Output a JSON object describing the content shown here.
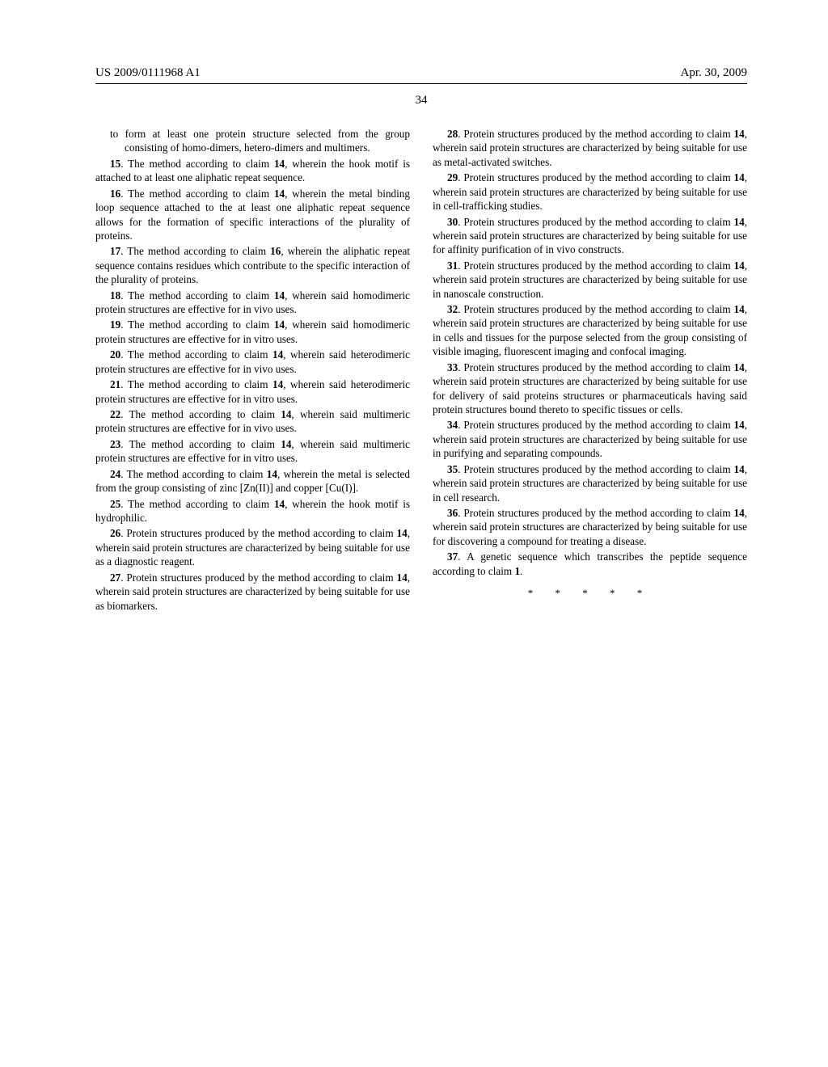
{
  "header": {
    "left": "US 2009/0111968 A1",
    "right": "Apr. 30, 2009"
  },
  "page_number": "34",
  "claims_col1": [
    {
      "style": "hang",
      "text": "to form at least one protein structure selected from the group consisting of homo-dimers, hetero-dimers and multimers."
    },
    {
      "style": "claim",
      "bold": "15",
      "text": ". The method according to claim ",
      "bold2": "14",
      "tail": ", wherein the hook motif is attached to at least one aliphatic repeat sequence."
    },
    {
      "style": "claim",
      "bold": "16",
      "text": ". The method according to claim ",
      "bold2": "14",
      "tail": ", wherein the metal binding loop sequence attached to the at least one aliphatic repeat sequence allows for the formation of specific interactions of the plurality of proteins."
    },
    {
      "style": "claim",
      "bold": "17",
      "text": ". The method according to claim ",
      "bold2": "16",
      "tail": ", wherein the aliphatic repeat sequence contains residues which contribute to the specific interaction of the plurality of proteins."
    },
    {
      "style": "claim",
      "bold": "18",
      "text": ". The method according to claim ",
      "bold2": "14",
      "tail": ", wherein said homodimeric protein structures are effective for in vivo uses."
    },
    {
      "style": "claim",
      "bold": "19",
      "text": ". The method according to claim ",
      "bold2": "14",
      "tail": ", wherein said homodimeric protein structures are effective for in vitro uses."
    },
    {
      "style": "claim",
      "bold": "20",
      "text": ". The method according to claim ",
      "bold2": "14",
      "tail": ", wherein said heterodimeric protein structures are effective for in vivo uses."
    },
    {
      "style": "claim",
      "bold": "21",
      "text": ". The method according to claim ",
      "bold2": "14",
      "tail": ", wherein said heterodimeric protein structures are effective for in vitro uses."
    },
    {
      "style": "claim",
      "bold": "22",
      "text": ". The method according to claim ",
      "bold2": "14",
      "tail": ", wherein said multimeric protein structures are effective for in vivo uses."
    },
    {
      "style": "claim",
      "bold": "23",
      "text": ". The method according to claim ",
      "bold2": "14",
      "tail": ", wherein said multimeric protein structures are effective for in vitro uses."
    },
    {
      "style": "claim",
      "bold": "24",
      "text": ". The method according to claim ",
      "bold2": "14",
      "tail": ", wherein the metal is selected from the group consisting of zinc [Zn(II)] and copper [Cu(I)]."
    },
    {
      "style": "claim",
      "bold": "25",
      "text": ". The method according to claim ",
      "bold2": "14",
      "tail": ", wherein the hook motif is hydrophilic."
    },
    {
      "style": "claim",
      "bold": "26",
      "text": ". Protein structures produced by the method according to claim ",
      "bold2": "14",
      "tail": ", wherein said protein structures are characterized by being suitable for use as a diagnostic reagent."
    },
    {
      "style": "claim",
      "bold": "27",
      "text": ". Protein structures produced by the method according to claim ",
      "bold2": "14",
      "tail": ", wherein said protein structures are characterized by being suitable for use as biomarkers."
    }
  ],
  "claims_col2": [
    {
      "style": "claim",
      "bold": "28",
      "text": ". Protein structures produced by the method according to claim ",
      "bold2": "14",
      "tail": ", wherein said protein structures are characterized by being suitable for use as metal-activated switches."
    },
    {
      "style": "claim",
      "bold": "29",
      "text": ". Protein structures produced by the method according to claim ",
      "bold2": "14",
      "tail": ", wherein said protein structures are characterized by being suitable for use in cell-trafficking studies."
    },
    {
      "style": "claim",
      "bold": "30",
      "text": ". Protein structures produced by the method according to claim ",
      "bold2": "14",
      "tail": ", wherein said protein structures are characterized by being suitable for use for affinity purification of in vivo constructs."
    },
    {
      "style": "claim",
      "bold": "31",
      "text": ". Protein structures produced by the method according to claim ",
      "bold2": "14",
      "tail": ", wherein said protein structures are characterized by being suitable for use in nanoscale construction."
    },
    {
      "style": "claim",
      "bold": "32",
      "text": ". Protein structures produced by the method according to claim ",
      "bold2": "14",
      "tail": ", wherein said protein structures are characterized by being suitable for use in cells and tissues for the purpose selected from the group consisting of visible imaging, fluorescent imaging and confocal imaging."
    },
    {
      "style": "claim",
      "bold": "33",
      "text": ". Protein structures produced by the method according to claim ",
      "bold2": "14",
      "tail": ", wherein said protein structures are characterized by being suitable for use for delivery of said proteins structures or pharmaceuticals having said protein structures bound thereto to specific tissues or cells."
    },
    {
      "style": "claim",
      "bold": "34",
      "text": ". Protein structures produced by the method according to claim ",
      "bold2": "14",
      "tail": ", wherein said protein structures are characterized by being suitable for use in purifying and separating compounds."
    },
    {
      "style": "claim",
      "bold": "35",
      "text": ". Protein structures produced by the method according to claim ",
      "bold2": "14",
      "tail": ", wherein said protein structures are characterized by being suitable for use in cell research."
    },
    {
      "style": "claim",
      "bold": "36",
      "text": ". Protein structures produced by the method according to claim ",
      "bold2": "14",
      "tail": ", wherein said protein structures are characterized by being suitable for use for discovering a compound for treating a disease."
    },
    {
      "style": "claim",
      "bold": "37",
      "text": ". A genetic sequence which transcribes the peptide sequence according to claim ",
      "bold2": "1",
      "tail": "."
    }
  ],
  "stars": "*   *   *   *   *"
}
